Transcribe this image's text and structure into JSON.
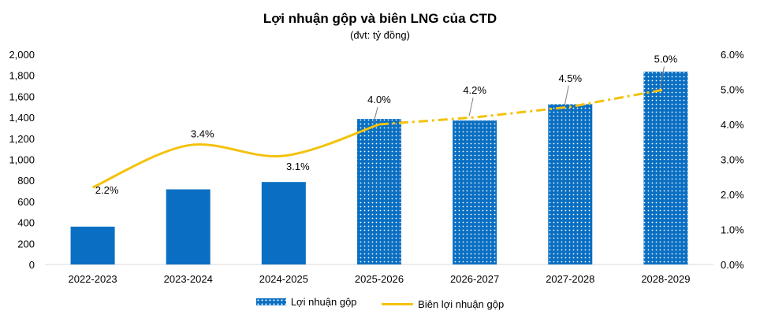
{
  "chart_data": {
    "type": "bar",
    "title": "Lợi nhuận gộp và biên LNG của CTD",
    "subtitle": "(đvt: tỷ đồng)",
    "categories": [
      "2022-2023",
      "2023-2024",
      "2024-2025",
      "2025-2026",
      "2026-2027",
      "2027-2028",
      "2028-2029"
    ],
    "series": [
      {
        "name": "Lợi nhuận gộp",
        "type": "bar",
        "axis": "left",
        "values": [
          360,
          715,
          785,
          1385,
          1370,
          1525,
          1835
        ],
        "forecast_from_index": 3
      },
      {
        "name": "Biên lợi nhuận gộp",
        "type": "line",
        "axis": "right",
        "values": [
          2.2,
          3.4,
          3.1,
          4.0,
          4.2,
          4.5,
          5.0
        ],
        "labels": [
          "2.2%",
          "3.4%",
          "3.1%",
          "4.0%",
          "4.2%",
          "4.5%",
          "5.0%"
        ],
        "forecast_from_index": 3
      }
    ],
    "y_left": {
      "min": 0,
      "max": 2000,
      "step": 200,
      "ticks": [
        "0",
        "200",
        "400",
        "600",
        "800",
        "1,000",
        "1,200",
        "1,400",
        "1,600",
        "1,800",
        "2,000"
      ]
    },
    "y_right": {
      "min": 0,
      "max": 6,
      "step": 1,
      "ticks": [
        "0.0%",
        "1.0%",
        "2.0%",
        "3.0%",
        "4.0%",
        "5.0%",
        "6.0%"
      ]
    },
    "grid": false,
    "legend_position": "bottom",
    "colors": {
      "bar": "#0a6fc2",
      "line": "#f4c20d",
      "dots": "#ffffff"
    }
  }
}
